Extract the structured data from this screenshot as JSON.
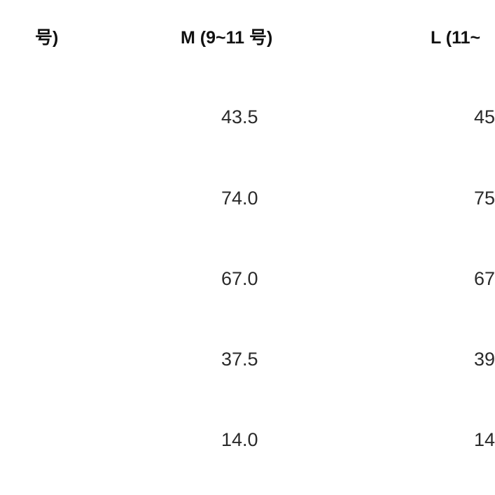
{
  "table": {
    "columns": [
      {
        "header": "号)",
        "values": []
      },
      {
        "header": "M (9~11 号)",
        "values": [
          "43.5",
          "74.0",
          "67.0",
          "37.5",
          "14.0"
        ]
      },
      {
        "header": "L (11~",
        "values": [
          "45",
          "75",
          "67",
          "39",
          "14"
        ]
      }
    ]
  }
}
